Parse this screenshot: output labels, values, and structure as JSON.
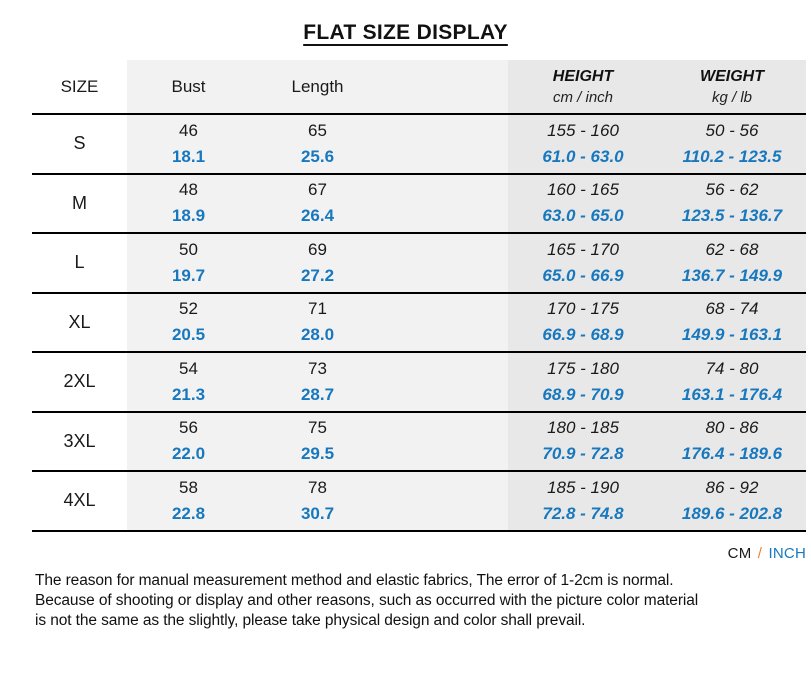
{
  "title": "FLAT SIZE DISPLAY",
  "table": {
    "headers": {
      "size": "SIZE",
      "bust": "Bust",
      "length": "Length",
      "height_label": "HEIGHT",
      "height_unit": "cm / inch",
      "weight_label": "WEIGHT",
      "weight_unit": "kg / lb"
    },
    "rows": [
      {
        "size": "S",
        "bust_cm": "46",
        "bust_in": "18.1",
        "length_cm": "65",
        "length_in": "25.6",
        "height_cm": "155 - 160",
        "height_in": "61.0 - 63.0",
        "weight_kg": "50 - 56",
        "weight_lb": "110.2 - 123.5"
      },
      {
        "size": "M",
        "bust_cm": "48",
        "bust_in": "18.9",
        "length_cm": "67",
        "length_in": "26.4",
        "height_cm": "160 - 165",
        "height_in": "63.0 - 65.0",
        "weight_kg": "56 - 62",
        "weight_lb": "123.5 - 136.7"
      },
      {
        "size": "L",
        "bust_cm": "50",
        "bust_in": "19.7",
        "length_cm": "69",
        "length_in": "27.2",
        "height_cm": "165 - 170",
        "height_in": "65.0 - 66.9",
        "weight_kg": "62 - 68",
        "weight_lb": "136.7 - 149.9"
      },
      {
        "size": "XL",
        "bust_cm": "52",
        "bust_in": "20.5",
        "length_cm": "71",
        "length_in": "28.0",
        "height_cm": "170 - 175",
        "height_in": "66.9 - 68.9",
        "weight_kg": "68 - 74",
        "weight_lb": "149.9 - 163.1"
      },
      {
        "size": "2XL",
        "bust_cm": "54",
        "bust_in": "21.3",
        "length_cm": "73",
        "length_in": "28.7",
        "height_cm": "175 - 180",
        "height_in": "68.9 - 70.9",
        "weight_kg": "74 - 80",
        "weight_lb": "163.1 - 176.4"
      },
      {
        "size": "3XL",
        "bust_cm": "56",
        "bust_in": "22.0",
        "length_cm": "75",
        "length_in": "29.5",
        "height_cm": "180 - 185",
        "height_in": "70.9 - 72.8",
        "weight_kg": "80 - 86",
        "weight_lb": "176.4 - 189.6"
      },
      {
        "size": "4XL",
        "bust_cm": "58",
        "bust_in": "22.8",
        "length_cm": "78",
        "length_in": "30.7",
        "height_cm": "185 - 190",
        "height_in": "72.8 - 74.8",
        "weight_kg": "86 - 92",
        "weight_lb": "189.6 - 202.8"
      }
    ]
  },
  "legend": {
    "cm": "CM",
    "separator": "/",
    "inch": "INCH"
  },
  "footnote_lines": [
    "The reason for manual measurement method and elastic fabrics, The error of 1-2cm is normal.",
    "Because of shooting or display and other reasons, such as occurred with the picture color material",
    "is not the same as the slightly, please take physical design and color shall prevail."
  ],
  "colors": {
    "inch_blue": "#1878be",
    "slash_orange": "#e8813f",
    "light_column_gray": "#f2f2f2",
    "dark_column_gray": "#e8e8e8",
    "row_line": "#000000"
  }
}
